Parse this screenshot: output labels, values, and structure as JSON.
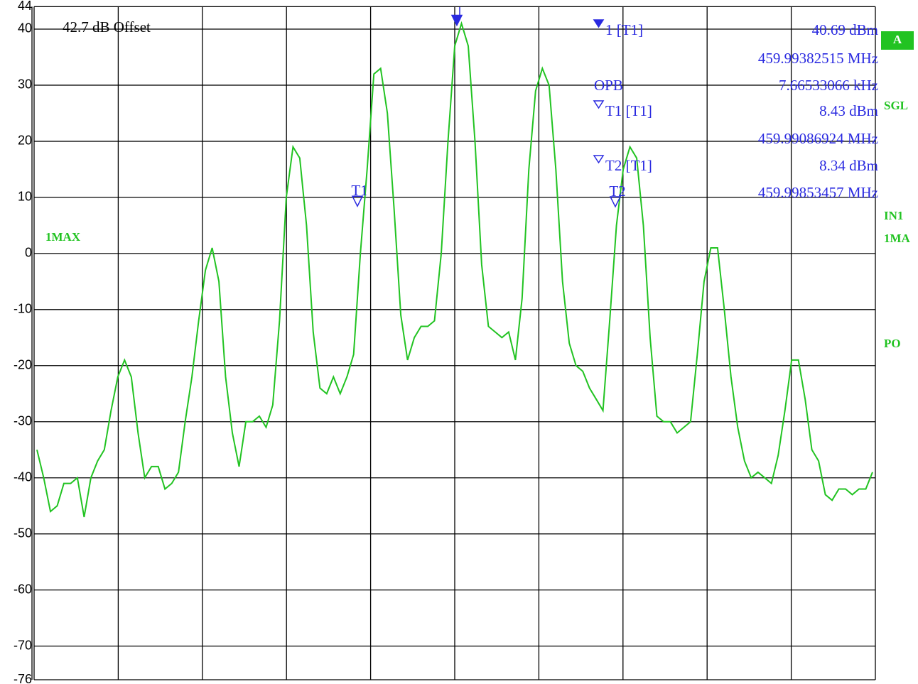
{
  "chart_data": {
    "type": "line",
    "offset_label": "42.7 dB Offset",
    "trace_label": "1MAX",
    "ylim": [
      -76,
      44
    ],
    "yticks": [
      44,
      40,
      30,
      20,
      10,
      0,
      -10,
      -20,
      -30,
      -40,
      -50,
      -60,
      -70,
      -76
    ],
    "grid": true,
    "series": [
      {
        "name": "1MAX",
        "color": "#22c322",
        "values": [
          -35,
          -40,
          -46,
          -45,
          -41,
          -41,
          -40,
          -47,
          -40,
          -37,
          -35,
          -28,
          -22,
          -19,
          -22,
          -32,
          -40,
          -38,
          -38,
          -42,
          -41,
          -39,
          -30,
          -22,
          -12,
          -3,
          1,
          -5,
          -22,
          -32,
          -38,
          -30,
          -30,
          -29,
          -31,
          -27,
          -12,
          10,
          19,
          17,
          5,
          -14,
          -24,
          -25,
          -22,
          -25,
          -22,
          -18,
          0,
          15,
          32,
          33,
          25,
          8,
          -11,
          -19,
          -15,
          -13,
          -13,
          -12,
          0,
          20,
          37,
          41,
          37,
          20,
          -2,
          -13,
          -14,
          -15,
          -14,
          -19,
          -8,
          15,
          29,
          33,
          30,
          15,
          -5,
          -16,
          -20,
          -21,
          -24,
          -26,
          -28,
          -12,
          5,
          15,
          19,
          17,
          5,
          -15,
          -29,
          -30,
          -30,
          -32,
          -31,
          -30,
          -18,
          -5,
          1,
          1,
          -10,
          -22,
          -31,
          -37,
          -40,
          -39,
          -40,
          -41,
          -36,
          -28,
          -19,
          -19,
          -26,
          -35,
          -37,
          -43,
          -44,
          -42,
          -42,
          -43,
          -42,
          -42,
          -39
        ]
      }
    ],
    "markers": [
      {
        "name": "1 [T1]",
        "level": 40.69,
        "level_label": "40.69 dBm",
        "frequency": "459.99382515 MHz"
      },
      {
        "name": "T1 [T1]",
        "plot_label": "T1",
        "level": 8.43,
        "level_label": "8.43 dBm",
        "frequency": "459.99086924 MHz"
      },
      {
        "name": "T2 [T1]",
        "plot_label": "T2",
        "level": 8.34,
        "level_label": "8.34 dBm",
        "frequency": "459.99853457 MHz"
      }
    ],
    "obw": {
      "name": "OPB",
      "value_label": "7.66533066 kHz"
    },
    "side_labels": [
      "A",
      "SGL",
      "IN1",
      "1MA",
      "PO"
    ]
  }
}
